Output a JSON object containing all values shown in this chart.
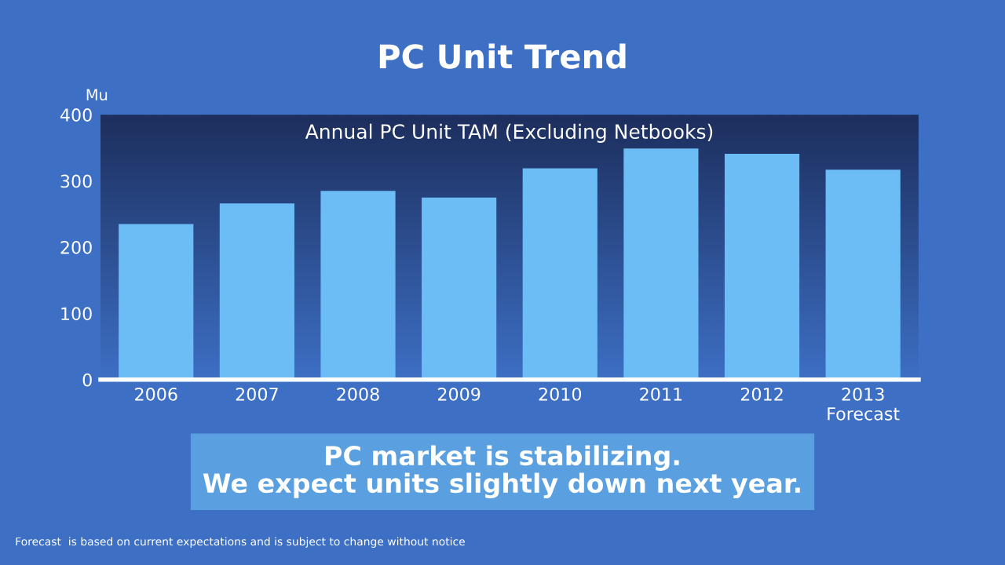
{
  "chart_data": {
    "type": "bar",
    "title": "PC Unit Trend",
    "subtitle": "Annual PC Unit TAM (Excluding Netbooks)",
    "ylabel": "Mu",
    "categories": [
      "2006",
      "2007",
      "2008",
      "2009",
      "2010",
      "2011",
      "2012",
      "2013\nForecast"
    ],
    "values": [
      235,
      266,
      285,
      275,
      319,
      349,
      341,
      317
    ],
    "color": "#6cbcf6",
    "ylim": [
      0,
      400
    ],
    "yticks": [
      0,
      100,
      200,
      300,
      400
    ],
    "grid": false,
    "annotations": [
      "PC market is stabilizing.\nWe expect units slightly down next year.",
      "Forecast  is based on current expectations and is subject to change without notice"
    ]
  }
}
